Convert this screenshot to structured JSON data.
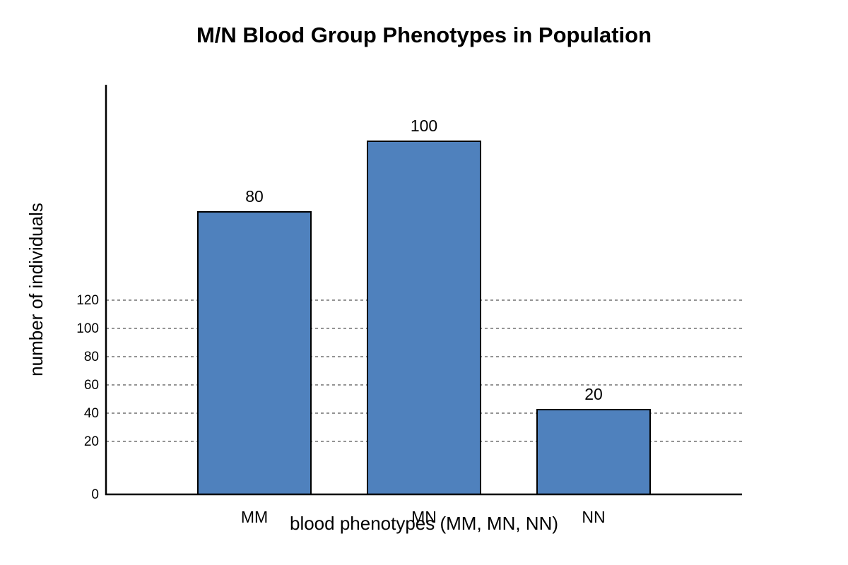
{
  "chart_data": {
    "type": "bar",
    "title": "M/N Blood Group Phenotypes in Population",
    "xlabel": "blood phenotypes (MM, MN, NN)",
    "ylabel": "number of individuals",
    "categories": [
      "MM",
      "MN",
      "NN"
    ],
    "values": [
      80,
      100,
      20
    ],
    "data_labels": [
      "80",
      "100",
      "20"
    ],
    "y_ticks": [
      0,
      20,
      40,
      60,
      80,
      100,
      120
    ],
    "ylim": [
      0,
      120
    ],
    "grid": true,
    "bar_color": "#4f81bd",
    "legend": "none"
  }
}
